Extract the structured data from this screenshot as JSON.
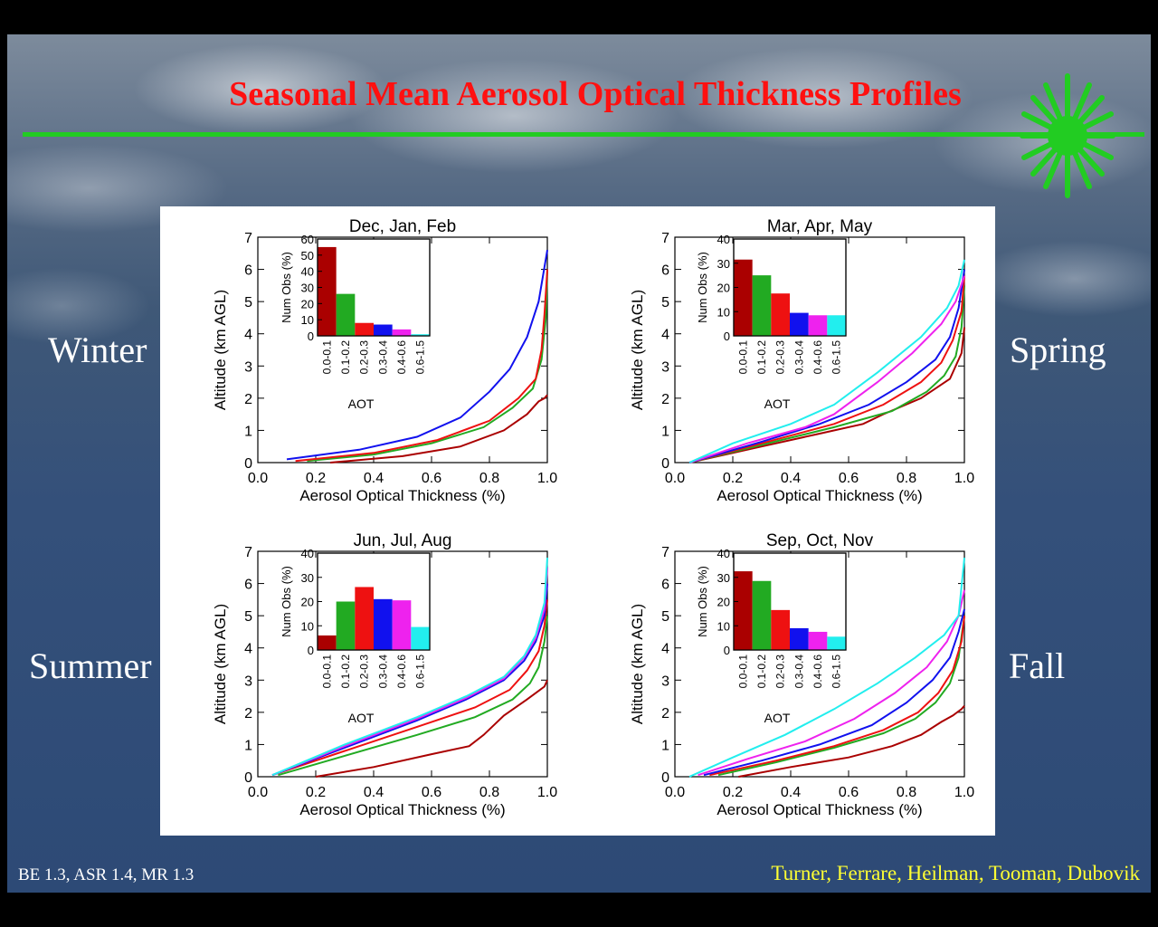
{
  "title": "Seasonal Mean Aerosol Optical Thickness Profiles",
  "seasons": {
    "winter": "Winter",
    "spring": "Spring",
    "summer": "Summer",
    "fall": "Fall"
  },
  "footer": {
    "left": "BE 1.3, ASR 1.4, MR 1.3",
    "right": "Turner, Ferrare, Heilman, Tooman, Dubovik"
  },
  "colors": {
    "title": "#ff1010",
    "rule": "#22cc22",
    "footer_right": "#ffff33",
    "bins": [
      "#aa0000",
      "#22aa22",
      "#ee1111",
      "#1111ee",
      "#ee22ee",
      "#22eeee"
    ]
  },
  "chart_data": [
    {
      "type": "line",
      "title": "Dec, Jan, Feb",
      "xlabel": "Aerosol Optical Thickness (%)",
      "ylabel": "Altitude (km AGL)",
      "xlim": [
        0,
        1
      ],
      "ylim": [
        0,
        7
      ],
      "xticks": [
        "0.0",
        "0.2",
        "0.4",
        "0.6",
        "0.8",
        "1.0"
      ],
      "yticks": [
        "0",
        "1",
        "2",
        "3",
        "4",
        "5",
        "6",
        "7"
      ],
      "series": [
        {
          "color": "#aa0000",
          "x": [
            0.25,
            0.5,
            0.7,
            0.85,
            0.93,
            0.97,
            0.99,
            1.0
          ],
          "y": [
            0,
            0.2,
            0.5,
            1.0,
            1.5,
            1.9,
            2.0,
            2.1
          ]
        },
        {
          "color": "#22aa22",
          "x": [
            0.17,
            0.4,
            0.6,
            0.78,
            0.88,
            0.95,
            0.98,
            0.995,
            1.0
          ],
          "y": [
            0.05,
            0.25,
            0.6,
            1.1,
            1.7,
            2.3,
            3.2,
            4.5,
            6.0
          ]
        },
        {
          "color": "#ee1111",
          "x": [
            0.13,
            0.4,
            0.62,
            0.8,
            0.9,
            0.96,
            0.98,
            0.99,
            1.0
          ],
          "y": [
            0.05,
            0.3,
            0.7,
            1.3,
            2.0,
            2.6,
            3.5,
            4.6,
            6.0
          ]
        },
        {
          "color": "#1111ee",
          "x": [
            0.1,
            0.35,
            0.55,
            0.7,
            0.8,
            0.87,
            0.93,
            0.97,
            1.0
          ],
          "y": [
            0.1,
            0.4,
            0.8,
            1.4,
            2.2,
            2.9,
            3.9,
            5.0,
            6.6
          ]
        }
      ],
      "inset": {
        "ylabel": "Num Obs (%)",
        "xlabel": "AOT",
        "ylim": [
          0,
          60
        ],
        "yticks": [
          "0",
          "10",
          "20",
          "30",
          "40",
          "50",
          "60"
        ],
        "categories": [
          "0.0-0.1",
          "0.1-0.2",
          "0.2-0.3",
          "0.3-0.4",
          "0.4-0.6",
          "0.6-1.5"
        ],
        "values": [
          55,
          26,
          8,
          7,
          4,
          1
        ]
      }
    },
    {
      "type": "line",
      "title": "Mar, Apr, May",
      "xlabel": "Aerosol Optical Thickness (%)",
      "ylabel": "Altitude (km AGL)",
      "xlim": [
        0,
        1
      ],
      "ylim": [
        0,
        7
      ],
      "xticks": [
        "0.0",
        "0.2",
        "0.4",
        "0.6",
        "0.8",
        "1.0"
      ],
      "yticks": [
        "0",
        "1",
        "2",
        "3",
        "4",
        "5",
        "6",
        "7"
      ],
      "series": [
        {
          "color": "#aa0000",
          "x": [
            0.05,
            0.3,
            0.5,
            0.65,
            0.72,
            0.85,
            0.95,
            0.99,
            1.0
          ],
          "y": [
            0,
            0.5,
            0.9,
            1.2,
            1.5,
            2.0,
            2.6,
            3.4,
            4.2
          ]
        },
        {
          "color": "#22aa22",
          "x": [
            0.05,
            0.3,
            0.55,
            0.75,
            0.87,
            0.93,
            0.97,
            0.99,
            1.0
          ],
          "y": [
            0,
            0.55,
            1.1,
            1.6,
            2.2,
            2.7,
            3.3,
            4.2,
            5.5
          ]
        },
        {
          "color": "#ee1111",
          "x": [
            0.05,
            0.3,
            0.55,
            0.72,
            0.85,
            0.92,
            0.96,
            0.99,
            1.0
          ],
          "y": [
            0,
            0.6,
            1.2,
            1.8,
            2.5,
            3.1,
            3.8,
            4.7,
            5.8
          ]
        },
        {
          "color": "#1111ee",
          "x": [
            0.05,
            0.3,
            0.5,
            0.67,
            0.8,
            0.9,
            0.95,
            0.98,
            1.0
          ],
          "y": [
            0,
            0.65,
            1.2,
            1.8,
            2.5,
            3.2,
            3.9,
            4.8,
            6.0
          ]
        },
        {
          "color": "#ee22ee",
          "x": [
            0.05,
            0.25,
            0.45,
            0.55,
            0.7,
            0.82,
            0.92,
            0.97,
            1.0
          ],
          "y": [
            0,
            0.6,
            1.1,
            1.5,
            2.5,
            3.4,
            4.3,
            5.0,
            5.8
          ]
        },
        {
          "color": "#22eeee",
          "x": [
            0.05,
            0.2,
            0.4,
            0.55,
            0.7,
            0.85,
            0.94,
            0.98,
            1.0
          ],
          "y": [
            0,
            0.6,
            1.2,
            1.8,
            2.8,
            3.9,
            4.8,
            5.5,
            6.3
          ]
        }
      ],
      "inset": {
        "ylabel": "Num Obs (%)",
        "xlabel": "AOT",
        "ylim": [
          0,
          40
        ],
        "yticks": [
          "0",
          "10",
          "20",
          "30",
          "40"
        ],
        "categories": [
          "0.0-0.1",
          "0.1-0.2",
          "0.2-0.3",
          "0.3-0.4",
          "0.4-0.6",
          "0.6-1.5"
        ],
        "values": [
          31.5,
          25,
          17.5,
          9.5,
          8.5,
          8.5
        ]
      }
    },
    {
      "type": "line",
      "title": "Jun, Jul, Aug",
      "xlabel": "Aerosol Optical Thickness (%)",
      "ylabel": "Altitude (km AGL)",
      "xlim": [
        0,
        1
      ],
      "ylim": [
        0,
        7
      ],
      "xticks": [
        "0.0",
        "0.2",
        "0.4",
        "0.6",
        "0.8",
        "1.0"
      ],
      "yticks": [
        "0",
        "1",
        "2",
        "3",
        "4",
        "5",
        "6",
        "7"
      ],
      "series": [
        {
          "color": "#aa0000",
          "x": [
            0.2,
            0.4,
            0.6,
            0.73,
            0.78,
            0.85,
            0.93,
            0.99,
            1.0
          ],
          "y": [
            0,
            0.3,
            0.7,
            0.95,
            1.3,
            1.9,
            2.4,
            2.8,
            3.0
          ]
        },
        {
          "color": "#22aa22",
          "x": [
            0.07,
            0.3,
            0.55,
            0.75,
            0.88,
            0.94,
            0.97,
            0.99,
            1.0
          ],
          "y": [
            0.05,
            0.65,
            1.3,
            1.85,
            2.4,
            2.9,
            3.4,
            4.2,
            5.0
          ]
        },
        {
          "color": "#ee1111",
          "x": [
            0.05,
            0.3,
            0.55,
            0.75,
            0.87,
            0.93,
            0.97,
            0.99,
            1.0
          ],
          "y": [
            0.05,
            0.8,
            1.55,
            2.15,
            2.7,
            3.3,
            3.9,
            4.7,
            5.5
          ]
        },
        {
          "color": "#1111ee",
          "x": [
            0.05,
            0.3,
            0.55,
            0.72,
            0.85,
            0.92,
            0.96,
            0.99,
            1.0
          ],
          "y": [
            0.05,
            0.9,
            1.75,
            2.4,
            3.0,
            3.6,
            4.2,
            5.0,
            6.0
          ]
        },
        {
          "color": "#ee22ee",
          "x": [
            0.05,
            0.3,
            0.55,
            0.72,
            0.85,
            0.92,
            0.96,
            0.99,
            1.0
          ],
          "y": [
            0.05,
            0.95,
            1.8,
            2.45,
            3.05,
            3.7,
            4.3,
            5.2,
            6.5
          ]
        },
        {
          "color": "#22eeee",
          "x": [
            0.05,
            0.3,
            0.55,
            0.72,
            0.85,
            0.92,
            0.96,
            0.99,
            1.0
          ],
          "y": [
            0.05,
            1.0,
            1.85,
            2.5,
            3.1,
            3.75,
            4.4,
            5.4,
            6.8
          ]
        }
      ],
      "inset": {
        "ylabel": "Num Obs (%)",
        "xlabel": "AOT",
        "ylim": [
          0,
          40
        ],
        "yticks": [
          "0",
          "10",
          "20",
          "30",
          "40"
        ],
        "categories": [
          "0.0-0.1",
          "0.1-0.2",
          "0.2-0.3",
          "0.3-0.4",
          "0.4-0.6",
          "0.6-1.5"
        ],
        "values": [
          6,
          20,
          26,
          21,
          20.5,
          9.5
        ]
      }
    },
    {
      "type": "line",
      "title": "Sep, Oct, Nov",
      "xlabel": "Aerosol Optical Thickness (%)",
      "ylabel": "Altitude (km AGL)",
      "xlim": [
        0,
        1
      ],
      "ylim": [
        0,
        7
      ],
      "xticks": [
        "0.0",
        "0.2",
        "0.4",
        "0.6",
        "0.8",
        "1.0"
      ],
      "yticks": [
        "0",
        "1",
        "2",
        "3",
        "4",
        "5",
        "6",
        "7"
      ],
      "series": [
        {
          "color": "#aa0000",
          "x": [
            0.22,
            0.4,
            0.6,
            0.75,
            0.85,
            0.92,
            0.96,
            0.99,
            1.0
          ],
          "y": [
            0,
            0.3,
            0.6,
            0.95,
            1.3,
            1.7,
            1.9,
            2.1,
            2.2
          ]
        },
        {
          "color": "#22aa22",
          "x": [
            0.15,
            0.35,
            0.55,
            0.72,
            0.83,
            0.9,
            0.95,
            0.98,
            1.0
          ],
          "y": [
            0.05,
            0.45,
            0.9,
            1.35,
            1.8,
            2.3,
            2.9,
            3.7,
            5.0
          ]
        },
        {
          "color": "#ee1111",
          "x": [
            0.12,
            0.35,
            0.55,
            0.72,
            0.84,
            0.91,
            0.96,
            0.99,
            1.0
          ],
          "y": [
            0.05,
            0.5,
            0.95,
            1.45,
            2.0,
            2.6,
            3.3,
            4.2,
            5.0
          ]
        },
        {
          "color": "#1111ee",
          "x": [
            0.1,
            0.3,
            0.5,
            0.68,
            0.8,
            0.89,
            0.95,
            0.98,
            1.0
          ],
          "y": [
            0.05,
            0.5,
            1.0,
            1.6,
            2.3,
            3.0,
            3.7,
            4.5,
            5.2
          ]
        },
        {
          "color": "#ee22ee",
          "x": [
            0.08,
            0.25,
            0.45,
            0.62,
            0.76,
            0.87,
            0.94,
            0.98,
            1.0
          ],
          "y": [
            0.05,
            0.55,
            1.1,
            1.8,
            2.6,
            3.4,
            4.2,
            5.0,
            5.8
          ]
        },
        {
          "color": "#22eeee",
          "x": [
            0.05,
            0.2,
            0.38,
            0.55,
            0.7,
            0.83,
            0.93,
            0.98,
            1.0
          ],
          "y": [
            0,
            0.6,
            1.3,
            2.1,
            2.9,
            3.7,
            4.4,
            5.0,
            6.8
          ]
        }
      ],
      "inset": {
        "ylabel": "Num Obs (%)",
        "xlabel": "AOT",
        "ylim": [
          0,
          40
        ],
        "yticks": [
          "0",
          "10",
          "20",
          "30",
          "40"
        ],
        "categories": [
          "0.0-0.1",
          "0.1-0.2",
          "0.2-0.3",
          "0.3-0.4",
          "0.4-0.6",
          "0.6-1.5"
        ],
        "values": [
          32.5,
          28.5,
          16.5,
          9,
          7.5,
          5.5
        ]
      }
    }
  ]
}
